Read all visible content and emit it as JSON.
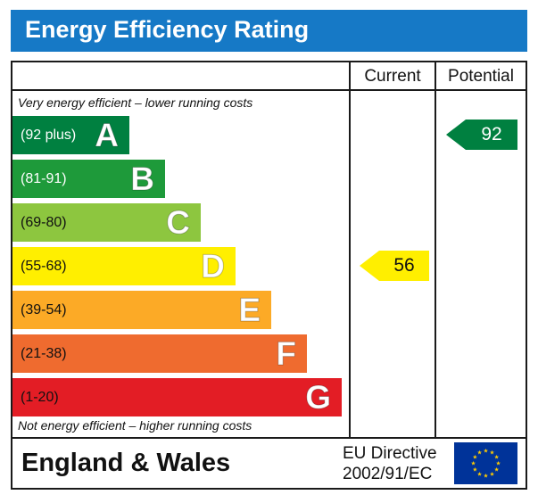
{
  "title": "Energy Efficiency Rating",
  "columns": {
    "current": "Current",
    "potential": "Potential"
  },
  "notes": {
    "top": "Very energy efficient – lower running costs",
    "bottom": "Not energy efficient – higher running costs"
  },
  "bands": [
    {
      "letter": "A",
      "range": "(92 plus)",
      "color": "#008040",
      "text_color": "#ffffff"
    },
    {
      "letter": "B",
      "range": "(81-91)",
      "color": "#1e9a3a",
      "text_color": "#ffffff"
    },
    {
      "letter": "C",
      "range": "(69-80)",
      "color": "#8dc63f",
      "text_color": "#111111"
    },
    {
      "letter": "D",
      "range": "(55-68)",
      "color": "#ffef00",
      "text_color": "#111111"
    },
    {
      "letter": "E",
      "range": "(39-54)",
      "color": "#fcaa26",
      "text_color": "#111111"
    },
    {
      "letter": "F",
      "range": "(21-38)",
      "color": "#ef6b2f",
      "text_color": "#111111"
    },
    {
      "letter": "G",
      "range": "(1-20)",
      "color": "#e31d25",
      "text_color": "#111111"
    }
  ],
  "ratings": {
    "current": {
      "value": "56",
      "band": "D",
      "color": "#ffef00",
      "text_color": "#111111"
    },
    "potential": {
      "value": "92",
      "band": "A",
      "color": "#008040",
      "text_color": "#ffffff"
    }
  },
  "footer": {
    "region": "England & Wales",
    "directive_line1": "EU Directive",
    "directive_line2": "2002/91/EC",
    "flag_icon": "eu-flag-icon",
    "flag_color": "#003399",
    "star_color": "#ffcc00"
  }
}
